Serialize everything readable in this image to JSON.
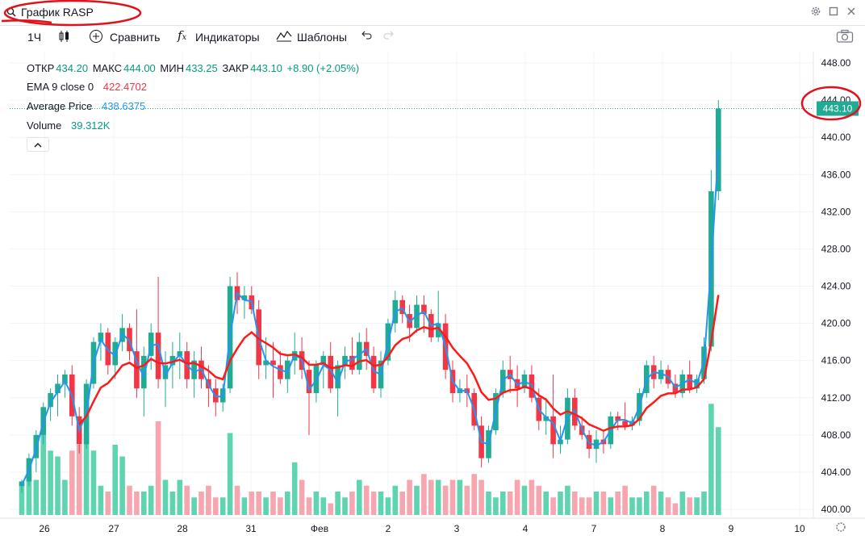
{
  "header": {
    "search_text": "График RASP",
    "icons": [
      "search-icon",
      "gear-icon",
      "maximize-icon",
      "close-icon"
    ]
  },
  "toolbar": {
    "interval": "1Ч",
    "compare": "Сравнить",
    "indicators": "Индикаторы",
    "templates": "Шаблоны",
    "icons": [
      "candles-icon",
      "plus-circle-icon",
      "fx-icon",
      "templates-icon",
      "undo-icon",
      "redo-icon",
      "camera-icon"
    ]
  },
  "legend": {
    "ohlc": {
      "open_label": "ОТКР",
      "open": "434.20",
      "high_label": "МАКС",
      "high": "444.00",
      "low_label": "МИН",
      "low": "433.25",
      "close_label": "ЗАКР",
      "close": "443.10",
      "change": "+8.90 (+2.05%)"
    },
    "ema": {
      "label": "EMA 9 close 0",
      "value": "422.4702"
    },
    "avg": {
      "label": "Average Price",
      "value": "438.6375"
    },
    "volume": {
      "label": "Volume",
      "value": "39.312K"
    }
  },
  "colors": {
    "up": "#22ab94",
    "down": "#f23645",
    "up_vol": "#5fd4b0",
    "down_vol": "#f7a5ae",
    "ema": "#ff1a1a",
    "avg": "#2196f3",
    "annotation": "#e0121b"
  },
  "chart_data": {
    "type": "candlestick",
    "symbol": "RASP",
    "interval": "1Ч",
    "ylim": [
      399,
      449
    ],
    "y_ticks": [
      "448.00",
      "444.00",
      "440.00",
      "436.00",
      "432.00",
      "428.00",
      "424.00",
      "420.00",
      "416.00",
      "412.00",
      "408.00",
      "404.00",
      "400.00"
    ],
    "x_ticks": [
      "26",
      "27",
      "28",
      "31",
      "Фев",
      "2",
      "3",
      "4",
      "7",
      "8",
      "9",
      "10"
    ],
    "last_price_label": "443.10",
    "candles": [
      [
        402.5,
        403.2,
        401.8,
        403.0
      ],
      [
        403.0,
        406.0,
        402.5,
        405.5
      ],
      [
        405.5,
        408.5,
        404.0,
        408.0
      ],
      [
        408.0,
        411.5,
        407.0,
        411.0
      ],
      [
        411.0,
        413.0,
        409.5,
        412.5
      ],
      [
        412.5,
        414.5,
        410.0,
        413.5
      ],
      [
        413.5,
        415.0,
        412.0,
        414.5
      ],
      [
        414.5,
        415.5,
        409.0,
        410.0
      ],
      [
        410.0,
        411.0,
        406.0,
        407.0
      ],
      [
        407.0,
        414.0,
        406.5,
        413.5
      ],
      [
        413.5,
        418.5,
        413.0,
        418.0
      ],
      [
        418.0,
        420.0,
        416.0,
        419.0
      ],
      [
        419.0,
        419.5,
        414.5,
        415.5
      ],
      [
        415.5,
        418.5,
        414.0,
        418.0
      ],
      [
        418.0,
        421.0,
        417.0,
        419.5
      ],
      [
        419.5,
        420.0,
        416.0,
        417.0
      ],
      [
        417.0,
        421.5,
        412.0,
        413.0
      ],
      [
        413.0,
        417.5,
        410.0,
        416.5
      ],
      [
        416.5,
        420.0,
        415.0,
        419.0
      ],
      [
        419.0,
        425.0,
        413.0,
        414.0
      ],
      [
        414.0,
        417.0,
        411.0,
        415.5
      ],
      [
        415.5,
        418.0,
        413.0,
        416.5
      ],
      [
        416.5,
        419.0,
        414.0,
        417.0
      ],
      [
        417.0,
        418.0,
        413.0,
        414.0
      ],
      [
        414.0,
        417.0,
        412.0,
        416.0
      ],
      [
        416.0,
        417.5,
        413.0,
        414.0
      ],
      [
        414.0,
        415.5,
        411.0,
        413.0
      ],
      [
        413.0,
        414.0,
        410.0,
        411.5
      ],
      [
        411.5,
        413.5,
        410.5,
        413.0
      ],
      [
        413.0,
        425.0,
        412.5,
        424.0
      ],
      [
        424.0,
        425.5,
        421.0,
        422.5
      ],
      [
        422.5,
        424.0,
        420.5,
        423.0
      ],
      [
        423.0,
        424.0,
        421.0,
        421.5
      ],
      [
        421.5,
        422.5,
        414.0,
        415.5
      ],
      [
        415.5,
        418.5,
        414.0,
        416.0
      ],
      [
        416.0,
        418.0,
        412.0,
        415.5
      ],
      [
        415.5,
        417.0,
        413.5,
        414.0
      ],
      [
        414.0,
        416.5,
        412.5,
        416.0
      ],
      [
        416.0,
        419.0,
        414.5,
        417.0
      ],
      [
        417.0,
        418.5,
        414.0,
        415.0
      ],
      [
        415.0,
        416.0,
        408.0,
        412.5
      ],
      [
        412.5,
        416.0,
        411.5,
        415.5
      ],
      [
        415.5,
        417.0,
        413.0,
        416.5
      ],
      [
        416.5,
        418.0,
        412.5,
        413.0
      ],
      [
        413.0,
        416.0,
        410.0,
        415.5
      ],
      [
        415.5,
        417.5,
        414.0,
        416.5
      ],
      [
        416.5,
        418.5,
        414.5,
        415.0
      ],
      [
        415.0,
        419.0,
        414.5,
        418.0
      ],
      [
        418.0,
        419.5,
        415.0,
        416.5
      ],
      [
        416.5,
        417.5,
        412.5,
        413.0
      ],
      [
        413.0,
        417.0,
        412.0,
        416.0
      ],
      [
        416.0,
        420.5,
        415.5,
        420.0
      ],
      [
        420.0,
        423.5,
        419.0,
        422.5
      ],
      [
        422.5,
        423.0,
        420.0,
        421.0
      ],
      [
        421.0,
        422.0,
        418.0,
        419.5
      ],
      [
        419.5,
        423.0,
        419.0,
        422.0
      ],
      [
        422.0,
        423.0,
        419.0,
        421.0
      ],
      [
        421.0,
        421.5,
        418.0,
        418.5
      ],
      [
        418.5,
        423.5,
        418.0,
        420.0
      ],
      [
        420.0,
        421.0,
        414.0,
        415.0
      ],
      [
        415.0,
        416.0,
        411.5,
        412.5
      ],
      [
        412.5,
        414.0,
        411.5,
        413.0
      ],
      [
        413.0,
        414.5,
        411.0,
        412.5
      ],
      [
        412.5,
        413.0,
        408.5,
        409.0
      ],
      [
        409.0,
        410.0,
        404.5,
        405.5
      ],
      [
        405.5,
        409.0,
        405.0,
        408.5
      ],
      [
        408.5,
        413.0,
        408.0,
        412.5
      ],
      [
        412.5,
        416.0,
        412.0,
        415.0
      ],
      [
        415.0,
        416.5,
        412.5,
        414.0
      ],
      [
        414.0,
        415.5,
        411.0,
        413.0
      ],
      [
        413.0,
        415.0,
        412.5,
        414.5
      ],
      [
        414.5,
        415.5,
        411.5,
        412.0
      ],
      [
        412.0,
        413.0,
        408.5,
        409.5
      ],
      [
        409.5,
        412.0,
        408.0,
        410.0
      ],
      [
        410.0,
        414.5,
        405.5,
        407.0
      ],
      [
        407.0,
        409.0,
        406.0,
        407.5
      ],
      [
        407.5,
        413.0,
        407.0,
        412.0
      ],
      [
        412.0,
        413.0,
        408.5,
        409.0
      ],
      [
        409.0,
        410.0,
        407.5,
        408.0
      ],
      [
        408.0,
        408.5,
        405.5,
        406.5
      ],
      [
        406.5,
        408.5,
        405.0,
        407.5
      ],
      [
        407.5,
        408.5,
        406.0,
        407.0
      ],
      [
        407.0,
        410.5,
        406.5,
        410.0
      ],
      [
        410.0,
        410.5,
        408.5,
        409.5
      ],
      [
        409.5,
        411.5,
        408.5,
        409.0
      ],
      [
        409.0,
        410.0,
        408.5,
        409.5
      ],
      [
        409.5,
        413.0,
        409.0,
        412.5
      ],
      [
        412.5,
        416.0,
        412.0,
        415.5
      ],
      [
        415.5,
        416.5,
        413.0,
        414.0
      ],
      [
        414.0,
        416.0,
        413.5,
        415.0
      ],
      [
        415.0,
        415.5,
        413.0,
        413.5
      ],
      [
        413.5,
        414.5,
        412.0,
        412.5
      ],
      [
        412.5,
        415.0,
        412.0,
        414.5
      ],
      [
        414.5,
        416.0,
        412.5,
        413.0
      ],
      [
        413.0,
        414.5,
        412.5,
        414.0
      ],
      [
        414.0,
        418.5,
        413.5,
        417.5
      ],
      [
        417.5,
        436.5,
        417.0,
        434.2
      ],
      [
        434.2,
        444.0,
        433.25,
        443.1
      ]
    ],
    "volume_relative": [
      0.28,
      0.35,
      0.3,
      0.7,
      0.55,
      0.5,
      0.3,
      0.55,
      0.6,
      0.7,
      0.55,
      0.25,
      0.2,
      0.6,
      0.5,
      0.25,
      0.2,
      0.2,
      0.25,
      0.8,
      0.3,
      0.2,
      0.3,
      0.25,
      0.15,
      0.2,
      0.25,
      0.15,
      0.15,
      0.7,
      0.25,
      0.15,
      0.2,
      0.2,
      0.15,
      0.2,
      0.15,
      0.2,
      0.45,
      0.3,
      0.15,
      0.2,
      0.15,
      0.1,
      0.2,
      0.15,
      0.2,
      0.3,
      0.25,
      0.2,
      0.2,
      0.15,
      0.25,
      0.2,
      0.3,
      0.25,
      0.35,
      0.3,
      0.3,
      0.25,
      0.3,
      0.3,
      0.25,
      0.35,
      0.3,
      0.2,
      0.15,
      0.2,
      0.2,
      0.3,
      0.25,
      0.3,
      0.25,
      0.2,
      0.15,
      0.2,
      0.25,
      0.2,
      0.15,
      0.15,
      0.2,
      0.2,
      0.15,
      0.2,
      0.25,
      0.15,
      0.15,
      0.2,
      0.25,
      0.2,
      0.15,
      0.1,
      0.2,
      0.15,
      0.15,
      0.2,
      0.95,
      0.75
    ]
  }
}
